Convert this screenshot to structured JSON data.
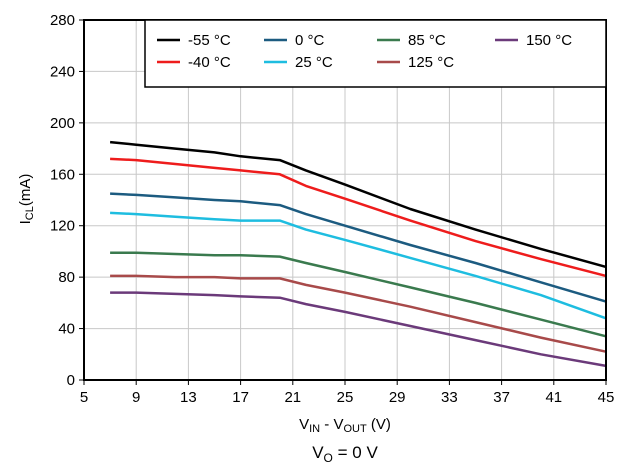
{
  "chart_data": {
    "type": "line",
    "xlabel": {
      "main": "V",
      "sub1": "IN",
      "mid": " - V",
      "sub2": "OUT",
      "tail": " (V)"
    },
    "ylabel": {
      "main": "I",
      "sub": "CL",
      "tail": "(mA)"
    },
    "caption": {
      "main": "V",
      "sub": "O",
      "tail": " = 0 V"
    },
    "xlim": [
      5,
      45
    ],
    "ylim": [
      0,
      280
    ],
    "xticks": [
      5,
      9,
      13,
      17,
      21,
      25,
      29,
      33,
      37,
      41,
      45
    ],
    "yticks": [
      0,
      40,
      80,
      120,
      160,
      200,
      240,
      280
    ],
    "grid": true,
    "legend_position": "top-right",
    "series": [
      {
        "name": "-55 °C",
        "color": "#000000",
        "x": [
          7,
          9,
          12,
          15,
          17,
          20,
          22,
          25,
          30,
          35,
          40,
          45
        ],
        "y": [
          185,
          183,
          180,
          177,
          174,
          171,
          163,
          152,
          133,
          117,
          102,
          88
        ]
      },
      {
        "name": "-40 °C",
        "color": "#ee1c1c",
        "x": [
          7,
          9,
          12,
          15,
          17,
          20,
          22,
          25,
          30,
          35,
          40,
          45
        ],
        "y": [
          172,
          171,
          168,
          165,
          163,
          160,
          151,
          141,
          124,
          108,
          94,
          81
        ]
      },
      {
        "name": "0 °C",
        "color": "#1c5b80",
        "x": [
          7,
          9,
          12,
          15,
          17,
          20,
          22,
          25,
          30,
          35,
          40,
          45
        ],
        "y": [
          145,
          144,
          142,
          140,
          139,
          136,
          129,
          120,
          105,
          91,
          76,
          61
        ]
      },
      {
        "name": "25 °C",
        "color": "#1ebde0",
        "x": [
          7,
          9,
          12,
          15,
          17,
          20,
          22,
          25,
          30,
          35,
          40,
          45
        ],
        "y": [
          130,
          129,
          127,
          125,
          124,
          124,
          117,
          109,
          95,
          81,
          66,
          48
        ]
      },
      {
        "name": "85 °C",
        "color": "#3a7a4e",
        "x": [
          7,
          9,
          12,
          15,
          17,
          20,
          22,
          25,
          30,
          35,
          40,
          45
        ],
        "y": [
          99,
          99,
          98,
          97,
          97,
          96,
          91,
          84,
          72,
          60,
          47,
          34
        ]
      },
      {
        "name": "125 °C",
        "color": "#a84a4a",
        "x": [
          7,
          9,
          12,
          15,
          17,
          20,
          22,
          25,
          30,
          35,
          40,
          45
        ],
        "y": [
          81,
          81,
          80,
          80,
          79,
          79,
          74,
          68,
          57,
          45,
          33,
          22
        ]
      },
      {
        "name": "150 °C",
        "color": "#6b3a7a",
        "x": [
          7,
          9,
          12,
          15,
          17,
          20,
          22,
          25,
          30,
          35,
          40,
          45
        ],
        "y": [
          68,
          68,
          67,
          66,
          65,
          64,
          59,
          53,
          42,
          31,
          20,
          11
        ]
      }
    ]
  }
}
